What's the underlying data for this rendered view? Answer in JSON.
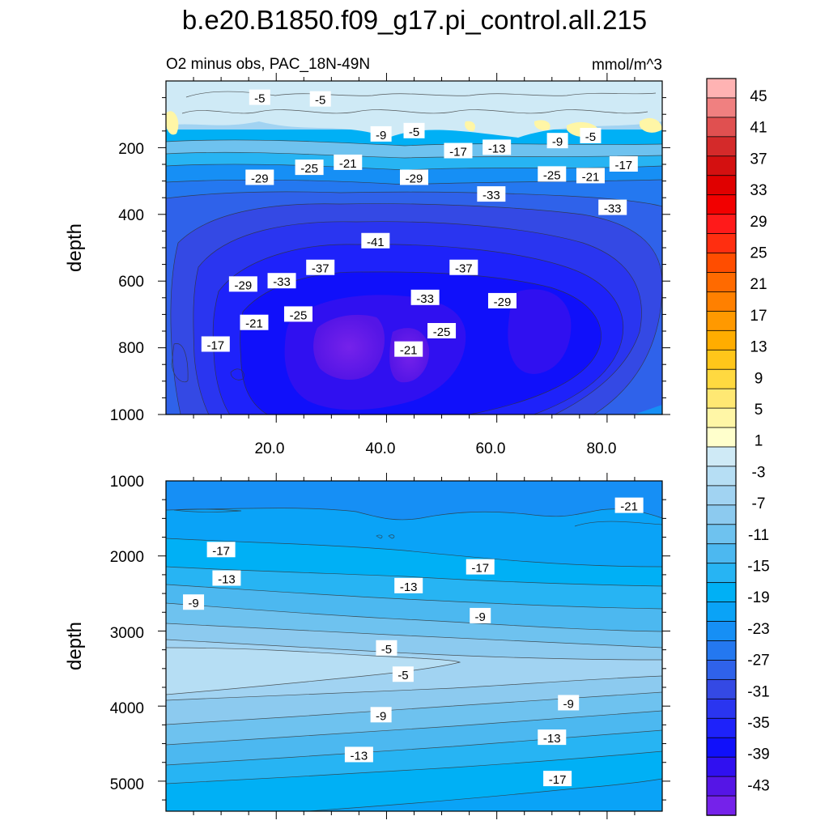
{
  "chart_data": {
    "type": "contour",
    "title": "b.e20.B1850.f09_g17.pi_control.all.215",
    "subtitle_left": "O2 minus obs, PAC_18N-49N",
    "units": "mmol/m^3",
    "colorbar": {
      "labels": [
        "45",
        "41",
        "37",
        "33",
        "29",
        "25",
        "21",
        "17",
        "13",
        "9",
        "5",
        "1",
        "-3",
        "-7",
        "-11",
        "-15",
        "-19",
        "-23",
        "-27",
        "-31",
        "-35",
        "-39",
        "-43"
      ],
      "colors": [
        "#ffb3b3",
        "#f08080",
        "#e05050",
        "#d42a2a",
        "#d41010",
        "#e00000",
        "#f20000",
        "#ff1a1a",
        "#ff2e10",
        "#ff4d00",
        "#ff6a00",
        "#ff8000",
        "#ff9900",
        "#ffad00",
        "#ffc61a",
        "#ffd940",
        "#ffe873",
        "#fff6a6",
        "#ffffcc",
        "#cfeaf6",
        "#b6def4",
        "#a1d3f2",
        "#8ccaef",
        "#6ec2ef",
        "#4cb8f0",
        "#27b4f3",
        "#00b0f5",
        "#0aa3f7",
        "#168ff5",
        "#2478f0",
        "#2f62ea",
        "#3449e4",
        "#2a35f0",
        "#1e22fa",
        "#1010fa",
        "#3010f0",
        "#5515e6",
        "#7522ea"
      ]
    },
    "panels": [
      {
        "name": "upper",
        "ylabel": "depth",
        "yrange": [
          0,
          1000
        ],
        "y_ticks": [
          "200",
          "400",
          "600",
          "800",
          "1000"
        ],
        "x_ticks": [
          "20.0",
          "40.0",
          "60.0",
          "80.0"
        ],
        "xrange": [
          0,
          90
        ],
        "contour_labels": [
          {
            "text": "-5",
            "x": 17,
            "y": 50
          },
          {
            "text": "-5",
            "x": 28,
            "y": 55
          },
          {
            "text": "-9",
            "x": 39,
            "y": 160
          },
          {
            "text": "-5",
            "x": 45,
            "y": 150
          },
          {
            "text": "-17",
            "x": 53,
            "y": 210
          },
          {
            "text": "-13",
            "x": 60,
            "y": 200
          },
          {
            "text": "-9",
            "x": 71,
            "y": 180
          },
          {
            "text": "-5",
            "x": 77,
            "y": 165
          },
          {
            "text": "-29",
            "x": 17,
            "y": 290
          },
          {
            "text": "-25",
            "x": 26,
            "y": 260
          },
          {
            "text": "-21",
            "x": 33,
            "y": 245
          },
          {
            "text": "-29",
            "x": 45,
            "y": 290
          },
          {
            "text": "-25",
            "x": 70,
            "y": 280
          },
          {
            "text": "-21",
            "x": 77,
            "y": 285
          },
          {
            "text": "-17",
            "x": 83,
            "y": 250
          },
          {
            "text": "-33",
            "x": 59,
            "y": 340
          },
          {
            "text": "-33",
            "x": 81,
            "y": 380
          },
          {
            "text": "-41",
            "x": 38,
            "y": 480
          },
          {
            "text": "-37",
            "x": 28,
            "y": 560
          },
          {
            "text": "-37",
            "x": 54,
            "y": 560
          },
          {
            "text": "-29",
            "x": 14,
            "y": 610
          },
          {
            "text": "-33",
            "x": 21,
            "y": 600
          },
          {
            "text": "-33",
            "x": 47,
            "y": 650
          },
          {
            "text": "-29",
            "x": 61,
            "y": 660
          },
          {
            "text": "-25",
            "x": 24,
            "y": 700
          },
          {
            "text": "-21",
            "x": 16,
            "y": 725
          },
          {
            "text": "-25",
            "x": 50,
            "y": 750
          },
          {
            "text": "-17",
            "x": 9,
            "y": 790
          },
          {
            "text": "-21",
            "x": 44,
            "y": 805
          }
        ]
      },
      {
        "name": "lower",
        "ylabel": "depth",
        "yrange": [
          1000,
          5400
        ],
        "y_ticks": [
          "1000",
          "2000",
          "3000",
          "4000",
          "5000"
        ],
        "xrange": [
          0,
          90
        ],
        "contour_labels": [
          {
            "text": "-21",
            "x": 84,
            "y": 1330
          },
          {
            "text": "-17",
            "x": 10,
            "y": 1920
          },
          {
            "text": "-17",
            "x": 57,
            "y": 2150
          },
          {
            "text": "-13",
            "x": 11,
            "y": 2300
          },
          {
            "text": "-13",
            "x": 44,
            "y": 2400
          },
          {
            "text": "-9",
            "x": 5,
            "y": 2620
          },
          {
            "text": "-9",
            "x": 57,
            "y": 2800
          },
          {
            "text": "-5",
            "x": 40,
            "y": 3230
          },
          {
            "text": "-5",
            "x": 43,
            "y": 3580
          },
          {
            "text": "-9",
            "x": 73,
            "y": 3960
          },
          {
            "text": "-9",
            "x": 39,
            "y": 4120
          },
          {
            "text": "-13",
            "x": 70,
            "y": 4420
          },
          {
            "text": "-13",
            "x": 35,
            "y": 4650
          },
          {
            "text": "-17",
            "x": 71,
            "y": 4970
          }
        ]
      }
    ]
  }
}
